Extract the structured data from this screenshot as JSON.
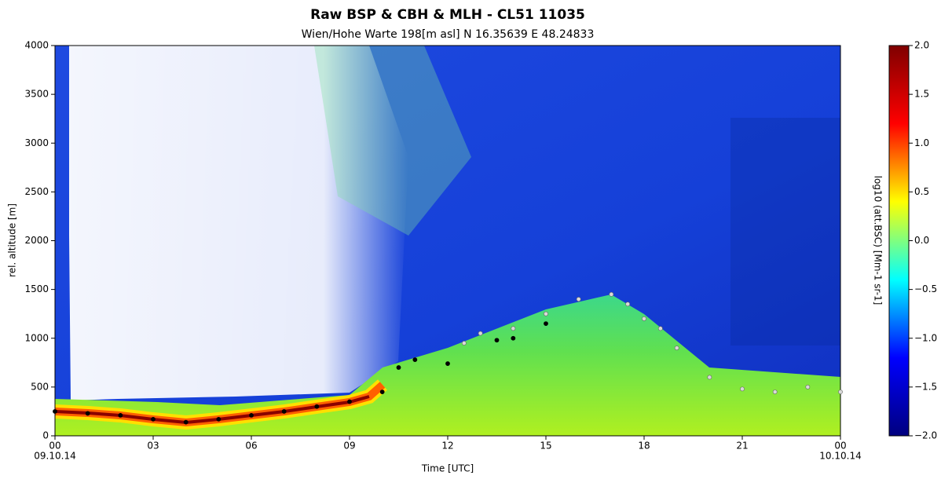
{
  "chart_data": {
    "type": "scatter",
    "title": "Raw BSP & CBH & MLH - CL51 11035",
    "subtitle": "Wien/Hohe Warte   198[m asl]    N 16.35639  E 48.24833",
    "xlabel": "Time [UTC]",
    "ylabel": "rel. altitude [m]",
    "xlim": [
      0,
      24
    ],
    "xticks": [
      {
        "value": 0,
        "label": "00"
      },
      {
        "value": 3,
        "label": "03"
      },
      {
        "value": 6,
        "label": "06"
      },
      {
        "value": 9,
        "label": "09"
      },
      12,
      15,
      18,
      21,
      {
        "value": 24,
        "label": "00"
      }
    ],
    "x_date_labels": [
      "09.10.14",
      "10.10.14"
    ],
    "ylim": [
      0,
      4000
    ],
    "yticks": [
      0,
      500,
      1000,
      1500,
      2000,
      2500,
      3000,
      3500,
      4000
    ],
    "series": [
      {
        "color": "#000000",
        "x": [
          0,
          1,
          2,
          3,
          4,
          5,
          6,
          7,
          8,
          9,
          10,
          10.5,
          11,
          12,
          13.5,
          14,
          15
        ],
        "values": [
          250,
          230,
          210,
          170,
          140,
          170,
          210,
          250,
          300,
          350,
          450,
          700,
          780,
          740,
          980,
          1000,
          1150
        ]
      },
      {
        "color": "#d9d9d9",
        "x": [
          12.5,
          13,
          14,
          15,
          16,
          17,
          17.5,
          18,
          18.5,
          19,
          20,
          21,
          22,
          23,
          24
        ],
        "values": [
          950,
          1050,
          1100,
          1250,
          1400,
          1450,
          1350,
          1200,
          1100,
          900,
          600,
          480,
          450,
          500,
          450
        ]
      }
    ],
    "colorbar": {
      "label": "log10 (att.BSC) [Mm-1 sr-1]",
      "lim": [
        -2,
        2
      ],
      "ticks": [
        {
          "value": -2,
          "label": "−2.0"
        },
        {
          "value": -1.5,
          "label": "−1.5"
        },
        {
          "value": -1,
          "label": "−1.0"
        },
        {
          "value": -0.5,
          "label": "−0.5"
        },
        {
          "value": 0,
          "label": "0.0"
        },
        {
          "value": 0.5,
          "label": "0.5"
        },
        {
          "value": 1,
          "label": "1.0"
        },
        {
          "value": 1.5,
          "label": "1.5"
        },
        {
          "value": 2,
          "label": "2.0"
        }
      ],
      "colors": [
        "#00007f",
        "#0000ff",
        "#00ffff",
        "#ffff00",
        "#ff0000",
        "#7f0000"
      ]
    }
  }
}
